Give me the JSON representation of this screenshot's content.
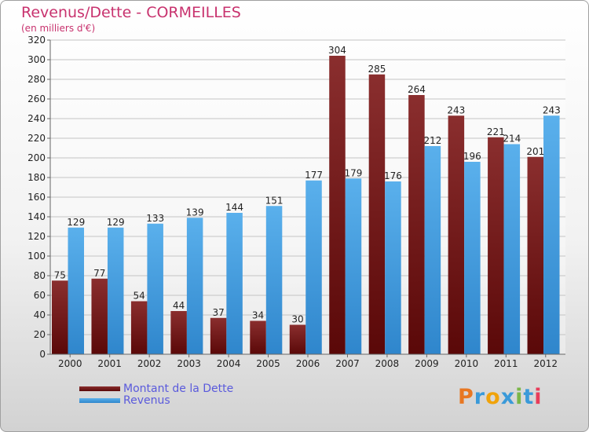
{
  "title": "Revenus/Dette - CORMEILLES",
  "subtitle": "(en milliers d'€)",
  "colors": {
    "dette": "#7a1a1a",
    "revenus": "#4aa3e2",
    "title": "#c8326e",
    "legend_text": "#5a5adc"
  },
  "logo": {
    "text": "Proxiti",
    "letters": [
      "P",
      "r",
      "o",
      "x",
      "i",
      "t",
      "i"
    ],
    "letter_colors": [
      "#e87722",
      "#3a9ad9",
      "#f0a30a",
      "#3a9ad9",
      "#7ab648",
      "#3a9ad9",
      "#e83d5a"
    ]
  },
  "chart_data": {
    "type": "bar",
    "categories": [
      "2000",
      "2001",
      "2002",
      "2003",
      "2004",
      "2005",
      "2006",
      "2007",
      "2008",
      "2009",
      "2010",
      "2011",
      "2012"
    ],
    "series": [
      {
        "name": "Montant de la Dette",
        "values": [
          75,
          77,
          54,
          44,
          37,
          34,
          30,
          304,
          285,
          264,
          243,
          221,
          201
        ]
      },
      {
        "name": "Revenus",
        "values": [
          129,
          129,
          133,
          139,
          144,
          151,
          177,
          179,
          176,
          212,
          196,
          214,
          243
        ]
      }
    ],
    "ylim": [
      0,
      320
    ],
    "yticks": [
      0,
      20,
      40,
      60,
      80,
      100,
      120,
      140,
      160,
      180,
      200,
      220,
      240,
      260,
      280,
      300,
      320
    ],
    "grid": true,
    "legend": "bottom-left"
  }
}
